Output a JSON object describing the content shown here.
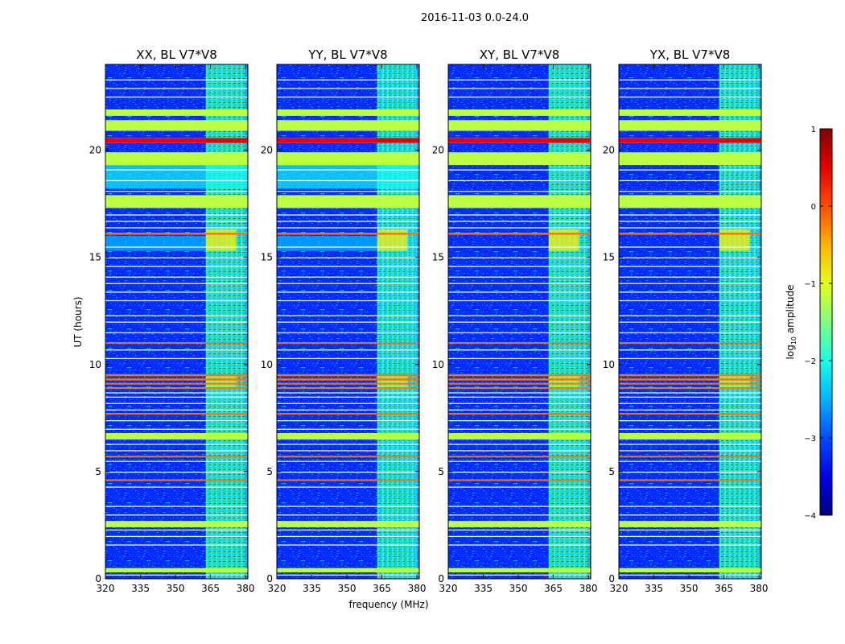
{
  "suptitle": "2016-11-03 0.0-24.0",
  "chart_data": {
    "type": "heatmap",
    "panels": [
      {
        "title": "XX, BL V7*V8",
        "id": "xx"
      },
      {
        "title": "YY, BL V7*V8",
        "id": "yy"
      },
      {
        "title": "XY, BL V7*V8",
        "id": "xy"
      },
      {
        "title": "YX, BL V7*V8",
        "id": "yx"
      }
    ],
    "xlabel": "frequency (MHz)",
    "ylabel": "UT (hours)",
    "xlim": [
      320,
      381
    ],
    "ylim": [
      0,
      24
    ],
    "xticks": [
      "320",
      "335",
      "350",
      "365",
      "380"
    ],
    "xtick_values": [
      320,
      335,
      350,
      365,
      380
    ],
    "yticks": [
      "0",
      "5",
      "10",
      "15",
      "20"
    ],
    "ytick_values": [
      0,
      5,
      10,
      15,
      20
    ],
    "colorbar": {
      "label_prefix": "log",
      "label_sub": "10",
      "label_suffix": " amplitude",
      "range": [
        -4,
        1
      ],
      "ticks": [
        "1",
        "0",
        "−1",
        "−2",
        "−3",
        "−4"
      ],
      "tick_values": [
        1,
        0,
        -1,
        -2,
        -3,
        -4
      ],
      "colormap": "jet"
    },
    "rfi_band_mhz": [
      363,
      380
    ],
    "strong_rfi_hours": [
      20.4,
      20.5,
      16.1,
      9.5,
      9.3,
      9.1,
      8.9,
      7.7,
      5.7,
      11.0,
      4.6
    ],
    "broad_bright_hours": [
      [
        17.3,
        17.9
      ],
      [
        19.3,
        19.9
      ],
      [
        20.9,
        21.4
      ],
      [
        21.6,
        21.9
      ],
      [
        6.5,
        6.8
      ],
      [
        2.4,
        2.7
      ],
      [
        0.3,
        0.5
      ]
    ]
  }
}
